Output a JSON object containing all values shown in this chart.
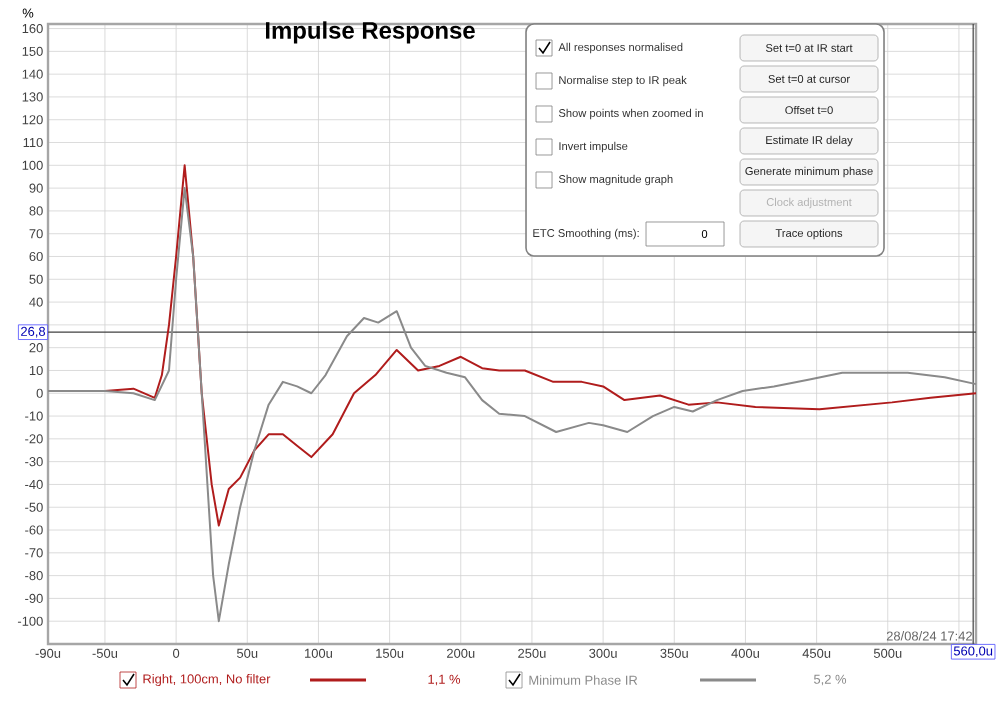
{
  "chart_data": {
    "type": "line",
    "title": "Impulse Response",
    "ylabel": "%",
    "xlim": [
      -90,
      562
    ],
    "ylim": [
      -110,
      162
    ],
    "xticks": [
      {
        "value": -90,
        "label": "-90u"
      },
      {
        "value": -50,
        "label": "-50u"
      },
      0,
      {
        "value": 50,
        "label": "50u"
      },
      {
        "value": 100,
        "label": "100u"
      },
      {
        "value": 150,
        "label": "150u"
      },
      {
        "value": 200,
        "label": "200u"
      },
      {
        "value": 250,
        "label": "250u"
      },
      {
        "value": 300,
        "label": "300u"
      },
      {
        "value": 350,
        "label": "350u"
      },
      {
        "value": 400,
        "label": "400u"
      },
      {
        "value": 450,
        "label": "450u"
      },
      {
        "value": 500,
        "label": "500u"
      },
      {
        "value": 550,
        "label": null
      }
    ],
    "yticks": [
      -100,
      -90,
      -80,
      -70,
      -60,
      -50,
      -40,
      -30,
      -20,
      -10,
      0,
      10,
      20,
      {
        "value": 30,
        "label": null
      },
      40,
      50,
      60,
      70,
      80,
      90,
      100,
      110,
      120,
      130,
      140,
      150,
      160
    ],
    "grid": true,
    "legend": "bottom",
    "series": [
      {
        "name": "Right, 100cm, No filter",
        "color": "#b01c1c",
        "x": [
          -90,
          -50,
          -30,
          -15,
          -10,
          -5,
          0,
          6,
          12,
          18,
          25,
          30,
          37,
          45,
          55,
          65,
          75,
          85,
          95,
          110,
          125,
          140,
          155,
          170,
          185,
          200,
          215,
          227,
          245,
          265,
          285,
          300,
          315,
          340,
          360,
          380,
          407,
          452,
          503,
          530,
          562
        ],
        "values": [
          1,
          1,
          2,
          -2,
          8,
          30,
          60,
          100,
          60,
          0,
          -40,
          -58,
          -42,
          -37,
          -25,
          -18,
          -18,
          -23,
          -28,
          -18,
          0,
          8,
          19,
          10,
          12,
          16,
          11,
          10,
          10,
          5,
          5,
          3,
          -3,
          -1,
          -5,
          -4,
          -6,
          -7,
          -4,
          -2,
          0
        ]
      },
      {
        "name": "Minimum Phase IR",
        "color": "#8a8a8a",
        "x": [
          -90,
          -50,
          -30,
          -15,
          -5,
          0,
          6,
          12,
          20,
          26,
          30,
          37,
          45,
          55,
          65,
          75,
          85,
          95,
          105,
          120,
          132,
          142,
          155,
          165,
          175,
          190,
          203,
          215,
          227,
          245,
          267,
          290,
          300,
          317,
          335,
          350,
          363,
          380,
          398,
          420,
          445,
          468,
          490,
          514,
          540,
          562
        ],
        "values": [
          1,
          1,
          0,
          -3,
          10,
          50,
          90,
          60,
          -20,
          -80,
          -100,
          -75,
          -50,
          -25,
          -5,
          5,
          3,
          0,
          8,
          25,
          33,
          31,
          36,
          20,
          12,
          9,
          7,
          -3,
          -9,
          -10,
          -17,
          -13,
          -14,
          -17,
          -10,
          -6,
          -8,
          -3,
          1,
          3,
          6,
          9,
          9,
          9,
          7,
          4
        ]
      }
    ],
    "ref_lines": [
      {
        "axis": "y",
        "value": 26.8,
        "label": "26,8",
        "color": "#404040"
      },
      {
        "axis": "x",
        "value": 560,
        "label": "560,0u",
        "color": "#404040"
      }
    ],
    "annotations": [
      "28/08/24 17:42",
      "1,1 %",
      "5,2 %",
      "All responses normalised",
      "Normalise step to IR peak",
      "Show points when zoomed in",
      "Invert impulse",
      "Show magnitude graph",
      "Set t=0 at IR start",
      "Set t=0 at cursor",
      "Offset t=0",
      "Estimate IR delay",
      "Generate minimum phase",
      "Clock adjustment",
      "Trace options",
      "ETC Smoothing (ms):",
      "0"
    ]
  }
}
